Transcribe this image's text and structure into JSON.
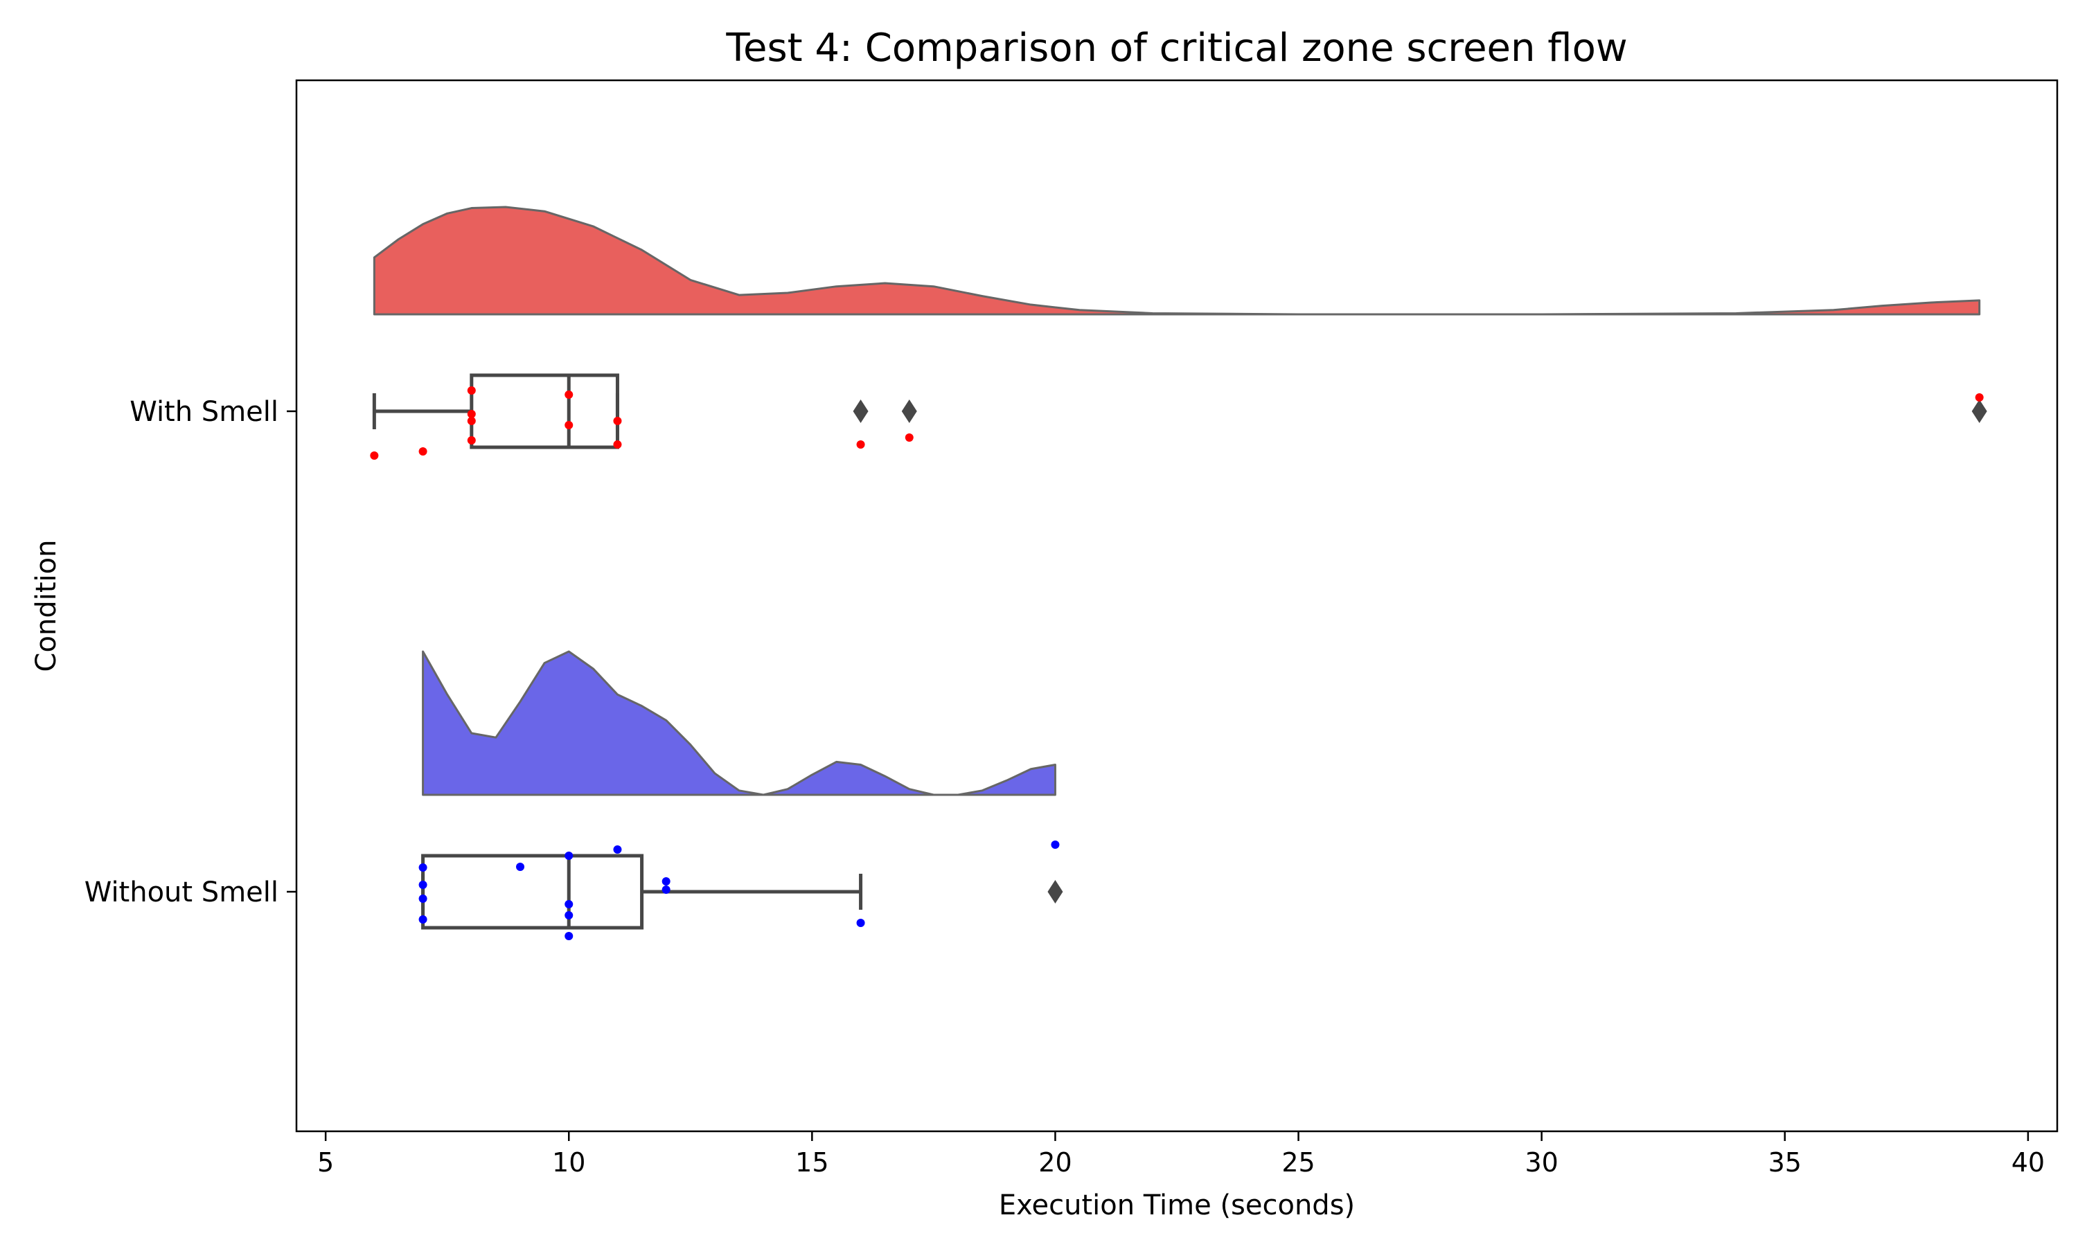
{
  "chart_data": {
    "type": "raincloud",
    "title": "Test 4: Comparison of critical zone screen flow",
    "xlabel": "Execution Time (seconds)",
    "ylabel": "Condition",
    "xlim": [
      4.4,
      40.6
    ],
    "xticks": [
      5,
      10,
      15,
      20,
      25,
      30,
      35,
      40
    ],
    "orientation": "horizontal",
    "grid": false,
    "groups": [
      {
        "name": "With Smell",
        "color": "#e8605d",
        "point_color": "#ff0000",
        "box": {
          "whisker_low": 6,
          "q1": 8,
          "median": 10,
          "q3": 11,
          "whisker_high": 11
        },
        "outliers": [
          16,
          17,
          39
        ],
        "points": [
          6,
          7,
          8,
          8,
          8,
          8,
          10,
          10,
          11,
          11,
          16,
          17,
          39
        ],
        "density": {
          "x": [
            6,
            6.5,
            7,
            7.5,
            8,
            8.7,
            9.5,
            10.5,
            11.5,
            12.5,
            13.5,
            14.5,
            15.5,
            16.5,
            17.5,
            18.5,
            19.5,
            20.5,
            22,
            25,
            30,
            34,
            36,
            37,
            38,
            39
          ],
          "y": [
            0.53,
            0.7,
            0.84,
            0.94,
            0.99,
            1.0,
            0.96,
            0.82,
            0.6,
            0.32,
            0.18,
            0.2,
            0.26,
            0.29,
            0.26,
            0.17,
            0.09,
            0.04,
            0.01,
            0.0,
            0.0,
            0.01,
            0.04,
            0.08,
            0.11,
            0.13
          ]
        }
      },
      {
        "name": "Without Smell",
        "color": "#6a66e8",
        "point_color": "#0000ff",
        "box": {
          "whisker_low": 7,
          "q1": 7,
          "median": 10,
          "q3": 11.5,
          "whisker_high": 16
        },
        "outliers": [
          20
        ],
        "points": [
          7,
          7,
          7,
          7,
          9,
          10,
          10,
          10,
          10,
          11,
          12,
          12,
          16,
          20
        ],
        "density": {
          "x": [
            7,
            7.5,
            8,
            8.5,
            9,
            9.5,
            10,
            10.5,
            11,
            11.5,
            12,
            12.5,
            13,
            13.5,
            14,
            14.5,
            15,
            15.5,
            16,
            16.5,
            17,
            17.5,
            18,
            18.5,
            19,
            19.5,
            20
          ],
          "y": [
            1.0,
            0.7,
            0.43,
            0.4,
            0.65,
            0.92,
            1.0,
            0.88,
            0.7,
            0.62,
            0.52,
            0.35,
            0.15,
            0.03,
            0.0,
            0.04,
            0.14,
            0.23,
            0.21,
            0.13,
            0.04,
            0.0,
            0.0,
            0.03,
            0.1,
            0.18,
            0.21
          ]
        }
      }
    ]
  }
}
